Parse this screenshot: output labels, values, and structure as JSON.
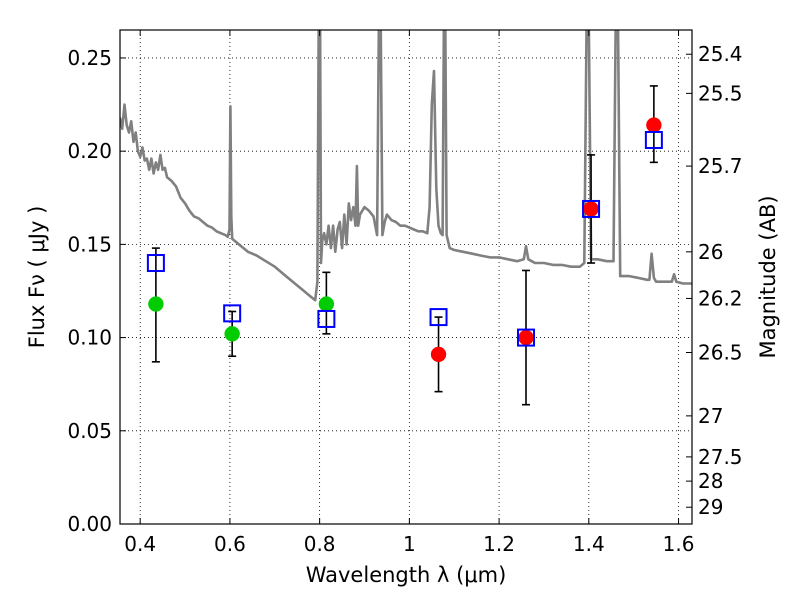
{
  "chart_data": {
    "type": "scatter",
    "xlabel": "Wavelength  λ (μm)",
    "ylabel": "Flux  Fν  ( μJy )",
    "ylabel_right": "Magnitude (AB)",
    "xlim": [
      0.355,
      1.63
    ],
    "ylim": [
      0.0,
      0.265
    ],
    "x_ticks": [
      0.4,
      0.6,
      0.8,
      1.0,
      1.2,
      1.4,
      1.6
    ],
    "x_tick_labels": [
      "0.4",
      "0.6",
      "0.8",
      "1",
      "1.2",
      "1.4",
      "1.6"
    ],
    "y_ticks": [
      0.0,
      0.05,
      0.1,
      0.15,
      0.2,
      0.25
    ],
    "y_tick_labels": [
      "0.00",
      "0.05",
      "0.10",
      "0.15",
      "0.20",
      "0.25"
    ],
    "right_ticks": [
      {
        "label": "25.4",
        "flux": 0.252
      },
      {
        "label": "25.5",
        "flux": 0.231
      },
      {
        "label": "25.7",
        "flux": 0.192
      },
      {
        "label": "26",
        "flux": 0.146
      },
      {
        "label": "26.2",
        "flux": 0.121
      },
      {
        "label": "26.5",
        "flux": 0.092
      },
      {
        "label": "27",
        "flux": 0.058
      },
      {
        "label": "27.5",
        "flux": 0.036
      },
      {
        "label": "28",
        "flux": 0.023
      },
      {
        "label": "29",
        "flux": 0.009
      }
    ],
    "grid": true,
    "series": [
      {
        "kind": "line",
        "color": "#808080",
        "points": [
          [
            0.355,
            0.218
          ],
          [
            0.36,
            0.212
          ],
          [
            0.365,
            0.225
          ],
          [
            0.37,
            0.214
          ],
          [
            0.375,
            0.21
          ],
          [
            0.38,
            0.216
          ],
          [
            0.385,
            0.205
          ],
          [
            0.39,
            0.21
          ],
          [
            0.395,
            0.2
          ],
          [
            0.4,
            0.197
          ],
          [
            0.405,
            0.202
          ],
          [
            0.41,
            0.195
          ],
          [
            0.415,
            0.196
          ],
          [
            0.42,
            0.19
          ],
          [
            0.425,
            0.196
          ],
          [
            0.43,
            0.188
          ],
          [
            0.435,
            0.194
          ],
          [
            0.44,
            0.19
          ],
          [
            0.445,
            0.198
          ],
          [
            0.45,
            0.19
          ],
          [
            0.455,
            0.191
          ],
          [
            0.46,
            0.186
          ],
          [
            0.47,
            0.184
          ],
          [
            0.48,
            0.181
          ],
          [
            0.49,
            0.175
          ],
          [
            0.5,
            0.172
          ],
          [
            0.51,
            0.168
          ],
          [
            0.52,
            0.165
          ],
          [
            0.53,
            0.164
          ],
          [
            0.54,
            0.162
          ],
          [
            0.55,
            0.16
          ],
          [
            0.56,
            0.159
          ],
          [
            0.57,
            0.157
          ],
          [
            0.58,
            0.156
          ],
          [
            0.59,
            0.155
          ],
          [
            0.595,
            0.154
          ],
          [
            0.599,
            0.158
          ],
          [
            0.601,
            0.224
          ],
          [
            0.603,
            0.165
          ],
          [
            0.605,
            0.153
          ],
          [
            0.62,
            0.15
          ],
          [
            0.64,
            0.146
          ],
          [
            0.66,
            0.144
          ],
          [
            0.68,
            0.141
          ],
          [
            0.7,
            0.138
          ],
          [
            0.72,
            0.134
          ],
          [
            0.74,
            0.13
          ],
          [
            0.76,
            0.126
          ],
          [
            0.78,
            0.122
          ],
          [
            0.79,
            0.12
          ],
          [
            0.795,
            0.13
          ],
          [
            0.798,
            0.27
          ],
          [
            0.801,
            0.27
          ],
          [
            0.803,
            0.14
          ],
          [
            0.806,
            0.152
          ],
          [
            0.81,
            0.156
          ],
          [
            0.815,
            0.15
          ],
          [
            0.82,
            0.16
          ],
          [
            0.825,
            0.148
          ],
          [
            0.83,
            0.16
          ],
          [
            0.835,
            0.146
          ],
          [
            0.84,
            0.158
          ],
          [
            0.845,
            0.162
          ],
          [
            0.85,
            0.148
          ],
          [
            0.855,
            0.166
          ],
          [
            0.86,
            0.15
          ],
          [
            0.865,
            0.172
          ],
          [
            0.87,
            0.163
          ],
          [
            0.875,
            0.17
          ],
          [
            0.88,
            0.16
          ],
          [
            0.883,
            0.192
          ],
          [
            0.886,
            0.16
          ],
          [
            0.89,
            0.166
          ],
          [
            0.9,
            0.17
          ],
          [
            0.91,
            0.168
          ],
          [
            0.92,
            0.165
          ],
          [
            0.928,
            0.155
          ],
          [
            0.932,
            0.27
          ],
          [
            0.936,
            0.27
          ],
          [
            0.94,
            0.155
          ],
          [
            0.945,
            0.162
          ],
          [
            0.95,
            0.166
          ],
          [
            0.96,
            0.163
          ],
          [
            0.97,
            0.162
          ],
          [
            0.98,
            0.16
          ],
          [
            0.99,
            0.16
          ],
          [
            1.0,
            0.159
          ],
          [
            1.01,
            0.158
          ],
          [
            1.02,
            0.157
          ],
          [
            1.03,
            0.157
          ],
          [
            1.04,
            0.156
          ],
          [
            1.045,
            0.17
          ],
          [
            1.05,
            0.225
          ],
          [
            1.055,
            0.243
          ],
          [
            1.06,
            0.18
          ],
          [
            1.065,
            0.16
          ],
          [
            1.07,
            0.156
          ],
          [
            1.074,
            0.155
          ],
          [
            1.077,
            0.27
          ],
          [
            1.08,
            0.27
          ],
          [
            1.083,
            0.155
          ],
          [
            1.09,
            0.148
          ],
          [
            1.1,
            0.147
          ],
          [
            1.12,
            0.146
          ],
          [
            1.14,
            0.145
          ],
          [
            1.16,
            0.144
          ],
          [
            1.18,
            0.143
          ],
          [
            1.2,
            0.143
          ],
          [
            1.22,
            0.142
          ],
          [
            1.24,
            0.141
          ],
          [
            1.255,
            0.142
          ],
          [
            1.26,
            0.149
          ],
          [
            1.265,
            0.142
          ],
          [
            1.28,
            0.14
          ],
          [
            1.3,
            0.14
          ],
          [
            1.32,
            0.139
          ],
          [
            1.34,
            0.139
          ],
          [
            1.36,
            0.138
          ],
          [
            1.38,
            0.138
          ],
          [
            1.39,
            0.14
          ],
          [
            1.395,
            0.27
          ],
          [
            1.4,
            0.27
          ],
          [
            1.405,
            0.142
          ],
          [
            1.42,
            0.142
          ],
          [
            1.44,
            0.141
          ],
          [
            1.455,
            0.141
          ],
          [
            1.46,
            0.27
          ],
          [
            1.465,
            0.27
          ],
          [
            1.47,
            0.133
          ],
          [
            1.49,
            0.133
          ],
          [
            1.51,
            0.132
          ],
          [
            1.53,
            0.131
          ],
          [
            1.535,
            0.131
          ],
          [
            1.54,
            0.145
          ],
          [
            1.545,
            0.132
          ],
          [
            1.55,
            0.13
          ],
          [
            1.57,
            0.13
          ],
          [
            1.585,
            0.13
          ],
          [
            1.59,
            0.134
          ],
          [
            1.595,
            0.13
          ],
          [
            1.61,
            0.129
          ],
          [
            1.63,
            0.129
          ]
        ]
      },
      {
        "kind": "squares",
        "color": "#0000ff",
        "points": [
          [
            0.435,
            0.14
          ],
          [
            0.605,
            0.113
          ],
          [
            0.815,
            0.11
          ],
          [
            1.065,
            0.111
          ],
          [
            1.26,
            0.1
          ],
          [
            1.405,
            0.169
          ],
          [
            1.545,
            0.206
          ]
        ]
      },
      {
        "kind": "points",
        "color": "#00cc00",
        "points": [
          [
            0.435,
            0.118
          ],
          [
            0.605,
            0.102
          ],
          [
            0.815,
            0.118
          ]
        ]
      },
      {
        "kind": "points",
        "color": "#ff0000",
        "points": [
          [
            1.065,
            0.091
          ],
          [
            1.26,
            0.1
          ],
          [
            1.405,
            0.169
          ],
          [
            1.545,
            0.214
          ]
        ]
      }
    ],
    "errorbars": [
      {
        "x": 0.435,
        "low": 0.087,
        "high": 0.148
      },
      {
        "x": 0.605,
        "low": 0.09,
        "high": 0.114
      },
      {
        "x": 0.815,
        "low": 0.102,
        "high": 0.135
      },
      {
        "x": 1.065,
        "low": 0.071,
        "high": 0.111
      },
      {
        "x": 1.26,
        "low": 0.064,
        "high": 0.136
      },
      {
        "x": 1.405,
        "low": 0.14,
        "high": 0.198
      },
      {
        "x": 1.545,
        "low": 0.194,
        "high": 0.235
      }
    ]
  }
}
